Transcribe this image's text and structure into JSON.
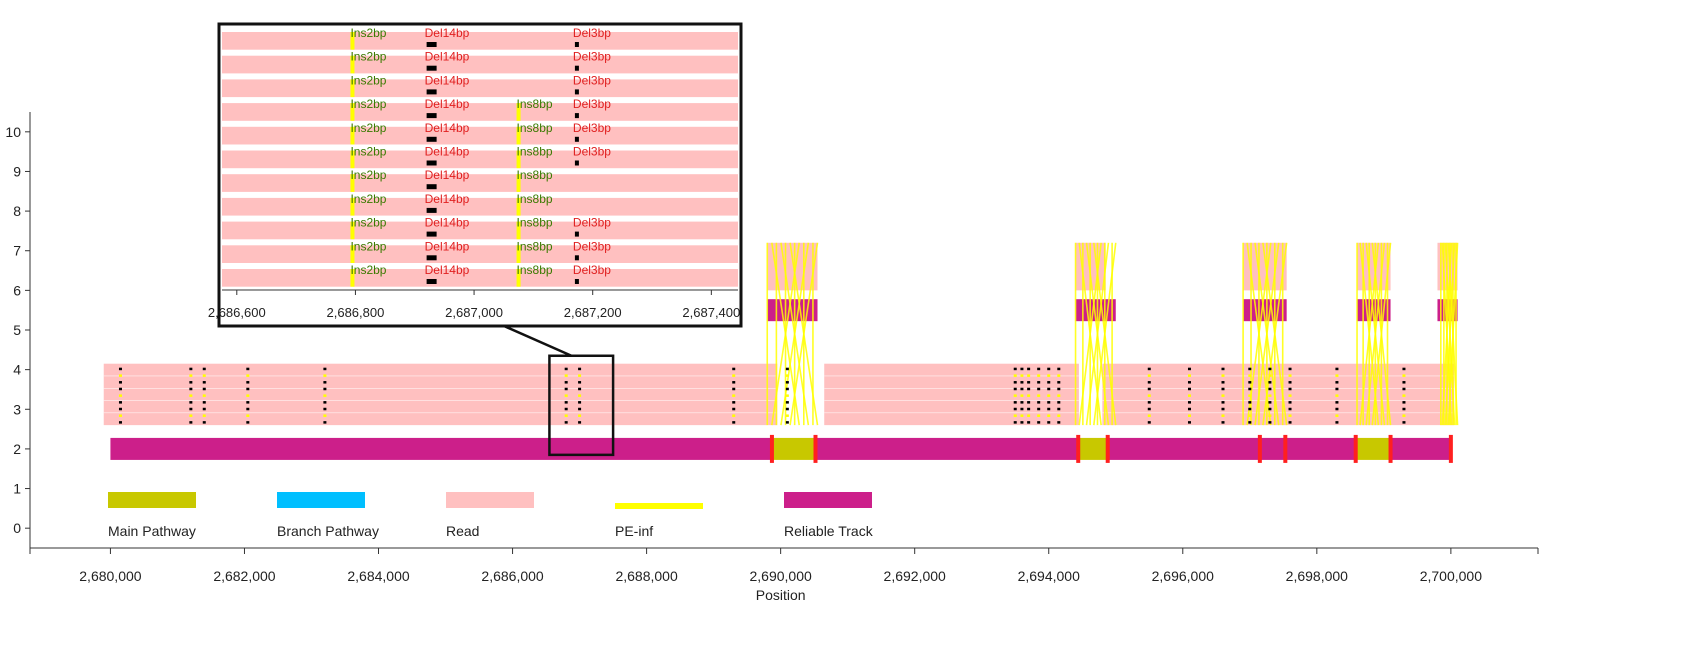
{
  "chart_data": {
    "type": "genome-track",
    "xlabel": "Position",
    "xlim": [
      2678800,
      2701300
    ],
    "ylim": [
      -0.5,
      10.5
    ],
    "x_ticks": [
      2680000,
      2682000,
      2684000,
      2686000,
      2688000,
      2690000,
      2692000,
      2694000,
      2696000,
      2698000,
      2700000
    ],
    "x_tick_labels": [
      "2,680,000",
      "2,682,000",
      "2,684,000",
      "2,686,000",
      "2,688,000",
      "2,690,000",
      "2,692,000",
      "2,694,000",
      "2,696,000",
      "2,698,000",
      "2,700,000"
    ],
    "y_ticks": [
      0,
      1,
      2,
      3,
      4,
      5,
      6,
      7,
      8,
      9,
      10
    ],
    "y_tick_labels": [
      "0",
      "1",
      "2",
      "3",
      "4",
      "5",
      "6",
      "7",
      "8",
      "9",
      "10"
    ],
    "colors": {
      "main_pathway": "#c8c800",
      "branch_pathway": "#00bfff",
      "read": "#ffc0c0",
      "pe_inf": "#ffff00",
      "reliable_track": "#cc1f8a",
      "junction": "#ff2020",
      "indel_mark": "#000000"
    },
    "legend": {
      "placement": "bottom-inside",
      "entries": [
        {
          "name": "Main Pathway",
          "swatch": "main_pathway"
        },
        {
          "name": "Branch Pathway",
          "swatch": "branch_pathway"
        },
        {
          "name": "Read",
          "swatch": "read"
        },
        {
          "name": "PE-inf",
          "swatch": "pe_inf"
        },
        {
          "name": "Reliable Track",
          "swatch": "reliable_track"
        }
      ]
    },
    "main_track": {
      "y": 2,
      "reliable_segments": [
        [
          2680000,
          2689850
        ],
        [
          2690500,
          2694450
        ],
        [
          2694900,
          2698600
        ],
        [
          2699100,
          2700000
        ]
      ],
      "main_pathway_segments": [
        [
          2689850,
          2690500
        ],
        [
          2694450,
          2694900
        ],
        [
          2698600,
          2699100
        ]
      ],
      "junctions": [
        2689870,
        2690520,
        2694440,
        2694880,
        2697150,
        2697530,
        2698580,
        2699100,
        2700000
      ]
    },
    "upper_tracks": {
      "y": 5.5,
      "reliable_segments": [
        [
          2689800,
          2690550
        ],
        [
          2694400,
          2695000
        ],
        [
          2696900,
          2697550
        ],
        [
          2698600,
          2699100
        ],
        [
          2699800,
          2700100
        ]
      ],
      "read_blocks": [
        [
          2689800,
          2690550,
          6,
          7.2
        ],
        [
          2694400,
          2694850,
          6,
          7.2
        ],
        [
          2696900,
          2697550,
          6,
          7.2
        ],
        [
          2698600,
          2699100,
          6,
          7.2
        ],
        [
          2699800,
          2700100,
          6,
          7.2
        ]
      ]
    },
    "read_pileup": {
      "y_range": [
        2.6,
        4.15
      ],
      "blocks": [
        [
          2679900,
          2689950
        ],
        [
          2690650,
          2694450
        ],
        [
          2694800,
          2700050
        ]
      ]
    },
    "indel_columns": [
      2680150,
      2681200,
      2681400,
      2682050,
      2683200,
      2686800,
      2687000,
      2689300,
      2690100,
      2693500,
      2693600,
      2693700,
      2693850,
      2694000,
      2694150,
      2695500,
      2696100,
      2696600,
      2697000,
      2697300,
      2697600,
      2698300,
      2699300
    ],
    "pe_lines_x_ranges": [
      [
        2689800,
        2690550
      ],
      [
        2694400,
        2695000
      ],
      [
        2696900,
        2697550
      ],
      [
        2698600,
        2699100
      ],
      [
        2699850,
        2700100
      ]
    ],
    "highlight": {
      "x_range": [
        2686550,
        2687500
      ],
      "y_range": [
        1.85,
        4.35
      ]
    },
    "inset": {
      "x_ticks": [
        2686600,
        2686800,
        2687000,
        2687200,
        2687400
      ],
      "x_tick_labels": [
        "2,686,600",
        "2,686,800",
        "2,687,000",
        "2,687,200",
        "2,687,400"
      ],
      "xlim": [
        2686570,
        2687450
      ],
      "variants": [
        {
          "x": 2686795,
          "label": "Ins2bp",
          "kind": "ins"
        },
        {
          "x": 2686920,
          "label": "Del14bp",
          "kind": "del"
        },
        {
          "x": 2687075,
          "label": "Ins8bp",
          "kind": "ins"
        },
        {
          "x": 2687170,
          "label": "Del3bp",
          "kind": "del"
        }
      ],
      "rows": [
        {
          "labels": [
            "Ins2bp",
            "Del14bp",
            "",
            "Del3bp"
          ]
        },
        {
          "labels": [
            "Ins2bp",
            "Del14bp",
            "",
            "Del3bp"
          ]
        },
        {
          "labels": [
            "Ins2bp",
            "Del14bp",
            "",
            "Del3bp"
          ]
        },
        {
          "labels": [
            "Ins2bp",
            "Del14bp",
            "Ins8bp",
            "Del3bp"
          ]
        },
        {
          "labels": [
            "Ins2bp",
            "Del14bp",
            "Ins8bp",
            "Del3bp"
          ]
        },
        {
          "labels": [
            "Ins2bp",
            "Del14bp",
            "Ins8bp",
            "Del3bp"
          ]
        },
        {
          "labels": [
            "Ins2bp",
            "Del14bp",
            "Ins8bp",
            ""
          ]
        },
        {
          "labels": [
            "Ins2bp",
            "Del14bp",
            "Ins8bp",
            ""
          ]
        },
        {
          "labels": [
            "Ins2bp",
            "Del14bp",
            "Ins8bp",
            "Del3bp"
          ]
        },
        {
          "labels": [
            "Ins2bp",
            "Del14bp",
            "Ins8bp",
            "Del3bp"
          ]
        },
        {
          "labels": [
            "Ins2bp",
            "Del14bp",
            "Ins8bp",
            "Del3bp"
          ]
        }
      ]
    }
  }
}
